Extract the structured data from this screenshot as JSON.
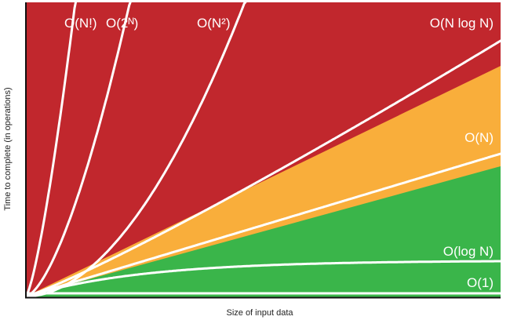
{
  "chart_data": {
    "type": "line",
    "title": "",
    "xlabel": "Size of input data",
    "ylabel": "Time to complete (in operations)",
    "grid": false,
    "legend": "none",
    "colors": {
      "bad": "#c1272d",
      "fair": "#f9ae3b",
      "good": "#3ab54a",
      "line": "#ffffff",
      "axis": "#111111"
    },
    "regions": [
      {
        "name": "bad",
        "color": "#c1272d"
      },
      {
        "name": "fair",
        "color": "#f9ae3b"
      },
      {
        "name": "good",
        "color": "#3ab54a"
      }
    ],
    "series": [
      {
        "name": "O(N!)",
        "growth": "factorial"
      },
      {
        "name": "O(2ᴺ)",
        "growth": "exponential"
      },
      {
        "name": "O(N²)",
        "growth": "quadratic"
      },
      {
        "name": "O(N log N)",
        "growth": "linearithmic"
      },
      {
        "name": "O(N)",
        "growth": "linear"
      },
      {
        "name": "O(log N)",
        "growth": "logarithmic"
      },
      {
        "name": "O(1)",
        "growth": "constant"
      }
    ]
  }
}
